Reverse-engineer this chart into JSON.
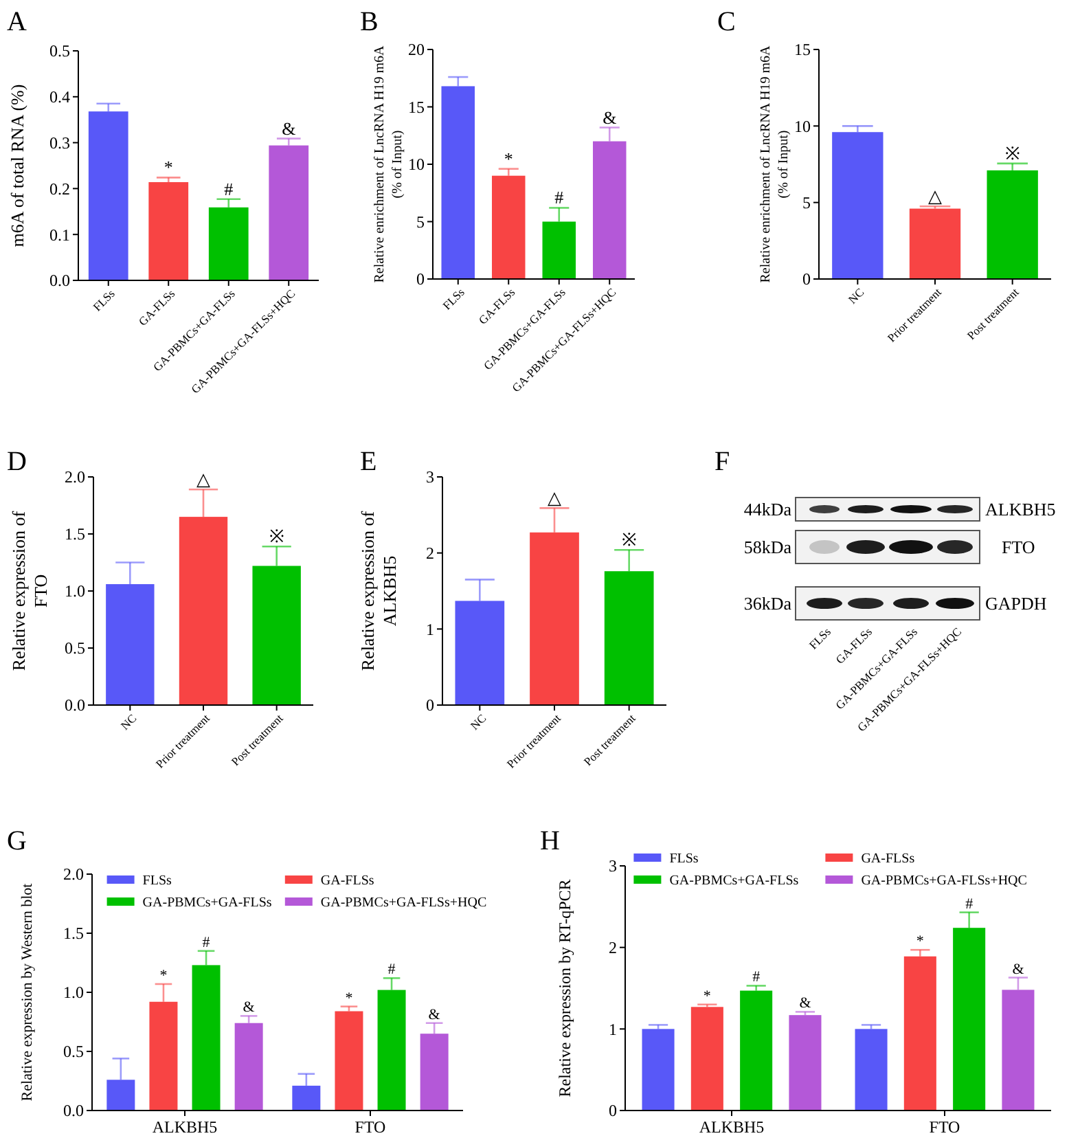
{
  "chart_data": [
    {
      "type": "bar",
      "title": "A",
      "ylabel": "m6A of total RNA (%)",
      "categories": [
        "FLSs",
        "GA-FLSs",
        "GA-PBMCs+GA-FLSs",
        "GA-PBMCs+GA-FLSs+HQC"
      ],
      "values": [
        0.368,
        0.214,
        0.159,
        0.294
      ],
      "errors": [
        0.017,
        0.01,
        0.018,
        0.015
      ],
      "value_labels": [
        null,
        "*",
        "#",
        "&"
      ],
      "colors": [
        "#5858f8",
        "#f84444",
        "#00c000",
        "#b458d8"
      ],
      "ylim": [
        0,
        0.5
      ],
      "yticks": [
        {
          "value": 0,
          "label": "0.0"
        },
        0.1,
        0.2,
        0.3,
        0.4,
        0.5
      ]
    },
    {
      "type": "bar",
      "title": "B",
      "ylabel": "Relative enrichment of LncRNA H19 m6A\n(% of Input)",
      "categories": [
        "FLSs",
        "GA-FLSs",
        "GA-PBMCs+GA-FLSs",
        "GA-PBMCs+GA-FLSs+HQC"
      ],
      "values": [
        16.8,
        9.0,
        5.0,
        12.0
      ],
      "errors": [
        0.8,
        0.6,
        1.2,
        1.2
      ],
      "value_labels": [
        null,
        "*",
        "#",
        "&"
      ],
      "colors": [
        "#5858f8",
        "#f84444",
        "#00c000",
        "#b458d8"
      ],
      "ylim": [
        0,
        20
      ],
      "yticks": [
        0,
        5,
        10,
        15,
        20
      ]
    },
    {
      "type": "bar",
      "title": "C",
      "ylabel": "Relative enrichment of LncRNA H19 m6A\n(% of Input)",
      "categories": [
        "NC",
        "Prior treatment",
        "Post treatment"
      ],
      "values": [
        9.6,
        4.6,
        7.1
      ],
      "errors": [
        0.4,
        0.15,
        0.45
      ],
      "value_labels": [
        null,
        "△",
        "※"
      ],
      "colors": [
        "#5858f8",
        "#f84444",
        "#00c000"
      ],
      "ylim": [
        0,
        15
      ],
      "yticks": [
        0,
        5,
        10,
        15
      ]
    },
    {
      "type": "bar",
      "title": "D",
      "ylabel": "Relative expression of\nFTO",
      "categories": [
        "NC",
        "Prior treatment",
        "Post treatment"
      ],
      "values": [
        1.06,
        1.65,
        1.22
      ],
      "errors": [
        0.19,
        0.24,
        0.17
      ],
      "value_labels": [
        null,
        "△",
        "※"
      ],
      "colors": [
        "#5858f8",
        "#f84444",
        "#00c000"
      ],
      "ylim": [
        0,
        2
      ],
      "yticks": [
        {
          "value": 0,
          "label": "0.0"
        },
        0.5,
        {
          "value": 1,
          "label": "1.0"
        },
        1.5,
        {
          "value": 2,
          "label": "2.0"
        }
      ]
    },
    {
      "type": "bar",
      "title": "E",
      "ylabel": "Relative expression of\nALKBH5",
      "categories": [
        "NC",
        "Prior treatment",
        "Post treatment"
      ],
      "values": [
        1.37,
        2.27,
        1.76
      ],
      "errors": [
        0.28,
        0.32,
        0.28
      ],
      "value_labels": [
        null,
        "△",
        "※"
      ],
      "colors": [
        "#5858f8",
        "#f84444",
        "#00c000"
      ],
      "ylim": [
        0,
        3
      ],
      "yticks": [
        0,
        1,
        2,
        3
      ]
    },
    {
      "type": "other",
      "title": "F",
      "categories": [
        "FLSs",
        "GA-FLSs",
        "GA-PBMCs+GA-FLSs",
        "GA-PBMCs+GA-FLSs+HQC"
      ],
      "annotations": [
        "44kDa",
        "58kDa",
        "36kDa",
        "ALKBH5",
        "FTO",
        "GAPDH"
      ]
    },
    {
      "type": "bar",
      "title": "G",
      "ylabel": "Relative expression by Western blot",
      "categories": [
        "ALKBH5",
        "FTO"
      ],
      "legend": "top",
      "ylim": [
        0,
        2
      ],
      "yticks": [
        {
          "value": 0,
          "label": "0.0"
        },
        0.5,
        {
          "value": 1,
          "label": "1.0"
        },
        1.5,
        {
          "value": 2,
          "label": "2.0"
        }
      ],
      "series": [
        {
          "name": "FLSs",
          "color": "#5858f8",
          "values": [
            0.26,
            0.21
          ],
          "errors": [
            0.18,
            0.1
          ],
          "value_labels": [
            null,
            null
          ]
        },
        {
          "name": "GA-FLSs",
          "color": "#f84444",
          "values": [
            0.92,
            0.84
          ],
          "errors": [
            0.15,
            0.04
          ],
          "value_labels": [
            "*",
            "*"
          ]
        },
        {
          "name": "GA-PBMCs+GA-FLSs",
          "color": "#00c000",
          "values": [
            1.23,
            1.02
          ],
          "errors": [
            0.12,
            0.1
          ],
          "value_labels": [
            "#",
            "#"
          ]
        },
        {
          "name": "GA-PBMCs+GA-FLSs+HQC",
          "color": "#b458d8",
          "values": [
            0.74,
            0.65
          ],
          "errors": [
            0.06,
            0.09
          ],
          "value_labels": [
            "&",
            "&"
          ]
        }
      ]
    },
    {
      "type": "bar",
      "title": "H",
      "ylabel": "Relative expression by RT-qPCR",
      "categories": [
        "ALKBH5",
        "FTO"
      ],
      "legend": "top",
      "ylim": [
        0,
        3
      ],
      "yticks": [
        0,
        1,
        2,
        3
      ],
      "series": [
        {
          "name": "FLSs",
          "color": "#5858f8",
          "values": [
            1.0,
            1.0
          ],
          "errors": [
            0.05,
            0.05
          ],
          "value_labels": [
            null,
            null
          ]
        },
        {
          "name": "GA-FLSs",
          "color": "#f84444",
          "values": [
            1.27,
            1.89
          ],
          "errors": [
            0.03,
            0.08
          ],
          "value_labels": [
            "*",
            "*"
          ]
        },
        {
          "name": "GA-PBMCs+GA-FLSs",
          "color": "#00c000",
          "values": [
            1.47,
            2.24
          ],
          "errors": [
            0.06,
            0.19
          ],
          "value_labels": [
            "#",
            "#"
          ]
        },
        {
          "name": "GA-PBMCs+GA-FLSs+HQC",
          "color": "#b458d8",
          "values": [
            1.17,
            1.48
          ],
          "errors": [
            0.04,
            0.15
          ],
          "value_labels": [
            "&",
            "&"
          ]
        }
      ]
    }
  ]
}
